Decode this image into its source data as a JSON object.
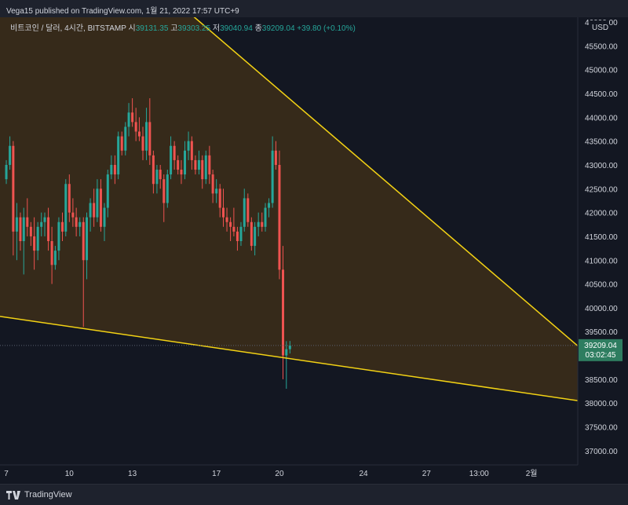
{
  "header": {
    "publish_text": "Vega15 published on TradingView.com, 1월 21, 2022 17:57 UTC+9"
  },
  "legend": {
    "symbol": "비트코인 / 달러, 4시간, BITSTAMP",
    "open_label": "시",
    "open_value": "39131.35",
    "high_label": "고",
    "high_value": "39303.25",
    "low_label": "저",
    "low_value": "39040.94",
    "close_label": "종",
    "close_value": "39209.04",
    "change": "+39.80 (+0.10%)"
  },
  "footer": {
    "brand": "TradingView"
  },
  "colors": {
    "background": "#131722",
    "up": "#26a69a",
    "down": "#ef5350",
    "line": "#f3d214",
    "fill": "#3a2c1a",
    "price_tag": "#2e7d60"
  },
  "chart_data": {
    "type": "candlestick",
    "currency": "USD",
    "y_axis": {
      "range": [
        36700,
        46100
      ],
      "ticks": [
        "37000.00",
        "37500.00",
        "38000.00",
        "38500.00",
        "39000.00",
        "39500.00",
        "40000.00",
        "40500.00",
        "41000.00",
        "41500.00",
        "42000.00",
        "42500.00",
        "43000.00",
        "43500.00",
        "44000.00",
        "44500.00",
        "45000.00",
        "45500.00",
        "46000.00"
      ]
    },
    "x_axis": {
      "range": [
        6.7,
        34.2
      ],
      "ticks": [
        {
          "value": 7,
          "label": "7"
        },
        {
          "value": 10,
          "label": "10"
        },
        {
          "value": 13,
          "label": "13"
        },
        {
          "value": 17,
          "label": "17"
        },
        {
          "value": 20,
          "label": "20"
        },
        {
          "value": 24,
          "label": "24"
        },
        {
          "value": 27,
          "label": "27"
        },
        {
          "value": 29.5,
          "label": "13:00"
        },
        {
          "value": 32,
          "label": "2월"
        }
      ]
    },
    "current_price": {
      "value": "39209.04",
      "countdown": "03:02:45"
    },
    "trendlines": [
      {
        "name": "upper",
        "x1": 6.7,
        "y1": 49600,
        "x2": 34.2,
        "y2": 39200
      },
      {
        "name": "lower",
        "x1": 6.7,
        "y1": 39820,
        "x2": 34.2,
        "y2": 38050
      }
    ],
    "candles": [
      [
        7.0,
        42700,
        43100,
        42600,
        43000
      ],
      [
        7.17,
        43000,
        43600,
        42900,
        43400
      ],
      [
        7.33,
        43400,
        43500,
        41100,
        41600
      ],
      [
        7.5,
        41600,
        42200,
        41000,
        41900
      ],
      [
        7.67,
        41900,
        42000,
        41200,
        41400
      ],
      [
        7.83,
        41400,
        42100,
        40700,
        41900
      ],
      [
        8.0,
        41900,
        42300,
        41500,
        41700
      ],
      [
        8.17,
        41700,
        41800,
        41300,
        41500
      ],
      [
        8.33,
        41500,
        41900,
        40800,
        41200
      ],
      [
        8.5,
        41200,
        41800,
        41000,
        41700
      ],
      [
        8.67,
        41700,
        42000,
        41500,
        41800
      ],
      [
        8.83,
        41800,
        42000,
        41500,
        41900
      ],
      [
        9.0,
        41900,
        42100,
        41200,
        41400
      ],
      [
        9.17,
        41400,
        41700,
        40500,
        40900
      ],
      [
        9.33,
        40900,
        41300,
        40800,
        41200
      ],
      [
        9.5,
        41200,
        41900,
        41000,
        41800
      ],
      [
        9.67,
        41800,
        42000,
        41400,
        41600
      ],
      [
        9.83,
        41600,
        42700,
        41500,
        42600
      ],
      [
        10.0,
        42600,
        42800,
        41800,
        42000
      ],
      [
        10.17,
        42000,
        42300,
        41700,
        41900
      ],
      [
        10.33,
        41900,
        42100,
        41500,
        41700
      ],
      [
        10.5,
        41700,
        41900,
        41500,
        41800
      ],
      [
        10.67,
        41800,
        41900,
        39600,
        41000
      ],
      [
        10.83,
        41000,
        42000,
        40600,
        41900
      ],
      [
        11.0,
        41900,
        42300,
        41600,
        42200
      ],
      [
        11.17,
        42200,
        42500,
        41700,
        41900
      ],
      [
        11.33,
        41900,
        42700,
        41800,
        42500
      ],
      [
        11.5,
        42500,
        42700,
        41600,
        41700
      ],
      [
        11.67,
        41700,
        42200,
        41400,
        42100
      ],
      [
        11.83,
        42100,
        42900,
        41900,
        42800
      ],
      [
        12.0,
        42800,
        43200,
        42700,
        43000
      ],
      [
        12.17,
        43000,
        43200,
        42600,
        42800
      ],
      [
        12.33,
        42800,
        43700,
        42700,
        43600
      ],
      [
        12.5,
        43600,
        43700,
        43200,
        43300
      ],
      [
        12.67,
        43300,
        43900,
        43200,
        43800
      ],
      [
        12.83,
        43800,
        44300,
        43600,
        44100
      ],
      [
        13.0,
        44100,
        44400,
        43800,
        43900
      ],
      [
        13.17,
        43900,
        44200,
        43500,
        43700
      ],
      [
        13.33,
        43700,
        44000,
        43500,
        43600
      ],
      [
        13.5,
        43600,
        43800,
        43100,
        43300
      ],
      [
        13.67,
        43300,
        44200,
        43100,
        43900
      ],
      [
        13.83,
        43900,
        44400,
        43000,
        43200
      ],
      [
        14.0,
        43200,
        43300,
        42400,
        42600
      ],
      [
        14.17,
        42600,
        43000,
        42400,
        42900
      ],
      [
        14.33,
        42900,
        43000,
        42500,
        42700
      ],
      [
        14.5,
        42700,
        42800,
        41800,
        42200
      ],
      [
        14.67,
        42200,
        42900,
        42100,
        42800
      ],
      [
        14.83,
        42800,
        43600,
        42700,
        43400
      ],
      [
        15.0,
        43400,
        43500,
        42900,
        43100
      ],
      [
        15.17,
        43100,
        43200,
        42800,
        42900
      ],
      [
        15.33,
        42900,
        43100,
        42600,
        42800
      ],
      [
        15.5,
        42800,
        43500,
        42700,
        43300
      ],
      [
        15.67,
        43300,
        43700,
        43100,
        43500
      ],
      [
        15.83,
        43500,
        43600,
        42900,
        43100
      ],
      [
        16.0,
        43100,
        43200,
        42800,
        42900
      ],
      [
        16.17,
        42900,
        43300,
        42800,
        43100
      ],
      [
        16.33,
        43100,
        43200,
        42500,
        42700
      ],
      [
        16.5,
        42700,
        43300,
        42600,
        43200
      ],
      [
        16.67,
        43200,
        43400,
        42600,
        42800
      ],
      [
        16.83,
        42800,
        42900,
        42200,
        42400
      ],
      [
        17.0,
        42400,
        42700,
        42200,
        42500
      ],
      [
        17.17,
        42500,
        42600,
        41900,
        42100
      ],
      [
        17.33,
        42100,
        42500,
        41700,
        41900
      ],
      [
        17.5,
        41900,
        42100,
        41600,
        41800
      ],
      [
        17.67,
        41800,
        41900,
        41400,
        41700
      ],
      [
        17.83,
        41700,
        42100,
        41500,
        41600
      ],
      [
        18.0,
        41600,
        41700,
        41200,
        41400
      ],
      [
        18.17,
        41400,
        41800,
        41300,
        41700
      ],
      [
        18.33,
        41700,
        42500,
        41600,
        42300
      ],
      [
        18.5,
        42300,
        42400,
        41700,
        41800
      ],
      [
        18.67,
        41800,
        41900,
        41200,
        41300
      ],
      [
        18.83,
        41300,
        41800,
        41100,
        41700
      ],
      [
        19.0,
        41700,
        42000,
        41500,
        41800
      ],
      [
        19.17,
        41800,
        42000,
        41600,
        41700
      ],
      [
        19.33,
        41700,
        42200,
        41600,
        42100
      ],
      [
        19.5,
        42100,
        42300,
        41900,
        42200
      ],
      [
        19.67,
        42200,
        43600,
        42100,
        43300
      ],
      [
        19.83,
        43300,
        43500,
        42900,
        43000
      ],
      [
        20.0,
        43000,
        43300,
        40600,
        40800
      ],
      [
        20.17,
        40800,
        41300,
        38500,
        39000
      ],
      [
        20.33,
        39000,
        39300,
        38300,
        39131
      ],
      [
        20.5,
        39131,
        39303,
        39040,
        39209
      ]
    ]
  }
}
